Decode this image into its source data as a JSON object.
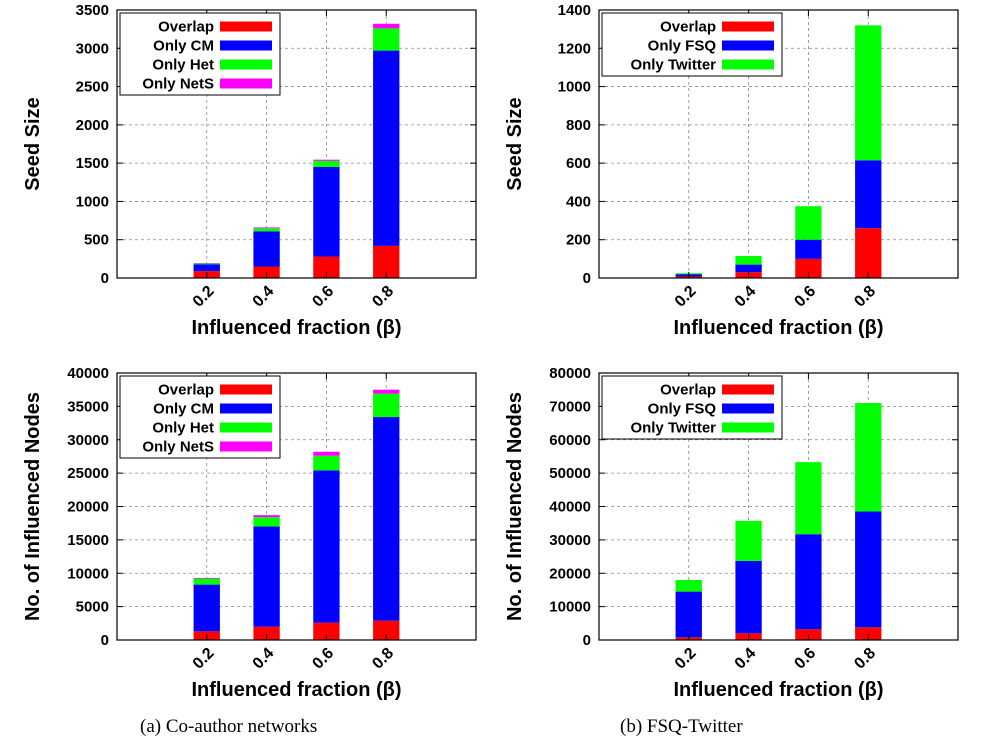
{
  "captions": {
    "a": "(a) Co-author networks",
    "b": "(b) FSQ-Twitter"
  },
  "colors": {
    "Overlap": "#ff0000",
    "Only CM": "#0000ff",
    "Only Het": "#00ff00",
    "Only NetS": "#ff00ff",
    "Only FSQ": "#0000ff",
    "Only Twitter": "#00ff00"
  },
  "chart_data": [
    {
      "id": "coauthor-seed",
      "type": "bar",
      "stacked": true,
      "categories": [
        "0.2",
        "0.4",
        "0.6",
        "0.8"
      ],
      "xlabel": "Influenced fraction (β)",
      "ylabel": "Seed Size",
      "ylim": [
        0,
        3500
      ],
      "yticks": [
        0,
        500,
        1000,
        1500,
        2000,
        2500,
        3000,
        3500
      ],
      "grid": true,
      "legend_position": "top-left",
      "series": [
        {
          "name": "Overlap",
          "values": [
            90,
            150,
            280,
            420
          ]
        },
        {
          "name": "Only CM",
          "values": [
            90,
            460,
            1170,
            2550
          ]
        },
        {
          "name": "Only Het",
          "values": [
            10,
            40,
            80,
            290
          ]
        },
        {
          "name": "Only NetS",
          "values": [
            5,
            10,
            15,
            60
          ]
        }
      ]
    },
    {
      "id": "fsq-seed",
      "type": "bar",
      "stacked": true,
      "categories": [
        "0.2",
        "0.4",
        "0.6",
        "0.8"
      ],
      "xlabel": "Influenced fraction (β)",
      "ylabel": "Seed Size",
      "ylim": [
        0,
        1400
      ],
      "yticks": [
        0,
        200,
        400,
        600,
        800,
        1000,
        1200,
        1400
      ],
      "grid": true,
      "legend_position": "top-left",
      "series": [
        {
          "name": "Overlap",
          "values": [
            8,
            30,
            100,
            260
          ]
        },
        {
          "name": "Only FSQ",
          "values": [
            12,
            40,
            100,
            355
          ]
        },
        {
          "name": "Only Twitter",
          "values": [
            5,
            45,
            175,
            705
          ]
        }
      ]
    },
    {
      "id": "coauthor-nodes",
      "type": "bar",
      "stacked": true,
      "categories": [
        "0.2",
        "0.4",
        "0.6",
        "0.8"
      ],
      "xlabel": "Influenced fraction (β)",
      "ylabel": "No. of Influenced Nodes",
      "ylim": [
        0,
        40000
      ],
      "yticks": [
        0,
        5000,
        10000,
        15000,
        20000,
        25000,
        30000,
        35000,
        40000
      ],
      "grid": true,
      "legend_position": "top-left",
      "series": [
        {
          "name": "Overlap",
          "values": [
            1300,
            2000,
            2600,
            2900
          ]
        },
        {
          "name": "Only CM",
          "values": [
            7000,
            15000,
            22800,
            30500
          ]
        },
        {
          "name": "Only Het",
          "values": [
            900,
            1400,
            2200,
            3500
          ]
        },
        {
          "name": "Only NetS",
          "values": [
            100,
            300,
            600,
            600
          ]
        }
      ]
    },
    {
      "id": "fsq-nodes",
      "type": "bar",
      "stacked": true,
      "categories": [
        "0.2",
        "0.4",
        "0.6",
        "0.8"
      ],
      "xlabel": "Influenced fraction (β)",
      "ylabel": "No. of Influenced Nodes",
      "ylim": [
        0,
        80000
      ],
      "yticks": [
        0,
        10000,
        20000,
        30000,
        40000,
        50000,
        60000,
        70000,
        80000
      ],
      "grid": true,
      "legend_position": "top-left",
      "series": [
        {
          "name": "Overlap",
          "values": [
            800,
            2000,
            3200,
            3800
          ]
        },
        {
          "name": "Only FSQ",
          "values": [
            13700,
            21700,
            28500,
            34700
          ]
        },
        {
          "name": "Only Twitter",
          "values": [
            3500,
            12000,
            21600,
            32500
          ]
        }
      ]
    }
  ]
}
